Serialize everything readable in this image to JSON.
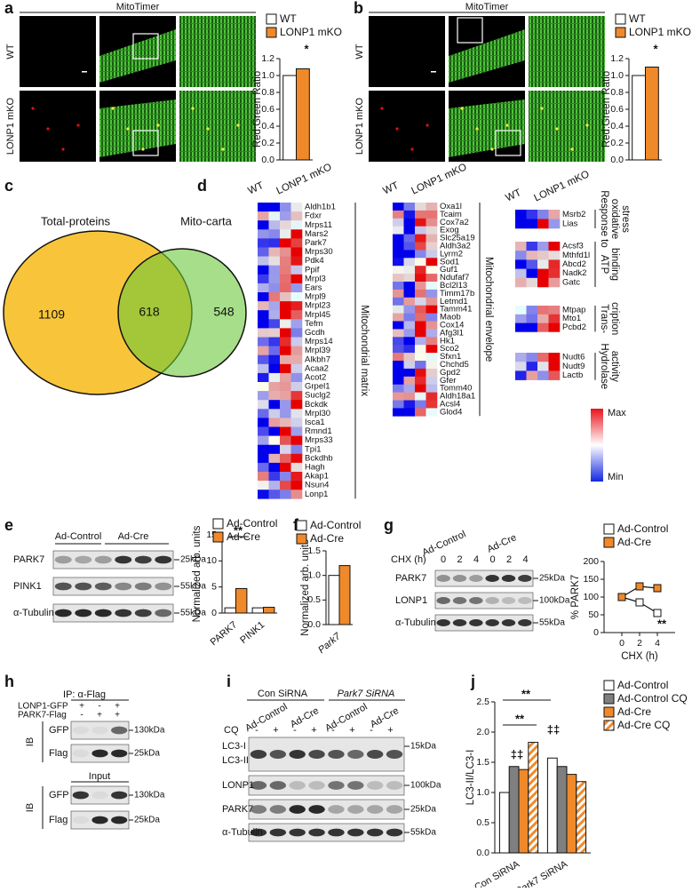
{
  "panels": {
    "a": {
      "letter": "a",
      "title": "MitoTimer",
      "rows": [
        "WT",
        "LONP1 mKO"
      ]
    },
    "b": {
      "letter": "b",
      "title": "MitoTimer",
      "rows": [
        "WT",
        "LONP1 mKO"
      ]
    },
    "c": {
      "letter": "c",
      "sets": [
        "Total-proteins",
        "Mito-carta"
      ],
      "counts": [
        1109,
        618,
        548
      ]
    },
    "d": {
      "letter": "d",
      "columns": [
        "WT",
        "LONP1 mKO"
      ],
      "groups": [
        {
          "label": [
            "Mitochondrial matrix"
          ],
          "genes": [
            "Aldh1b1",
            "Fdxr",
            "Mrps11",
            "Mars2",
            "Park7",
            "Mrps30",
            "Pdk4",
            "Ppif",
            "Mrpl3",
            "Ears",
            "Mrpl9",
            "Mrpl23",
            "Mrpl45",
            "Tefm",
            "Gcdh",
            "Mrps14",
            "Mrpl39",
            "Alkbh7",
            "Acaa2",
            "Acot2",
            "Grpel1",
            "Suclg2",
            "Bckdk",
            "Mrpl30",
            "Isca1",
            "Rmnd1",
            "Mrps33",
            "Tpi1",
            "Bckdhb",
            "Hagh",
            "Akap1",
            "Nsun4",
            "Lonp1"
          ]
        },
        {
          "label": [
            "Mitochondrial envelope"
          ],
          "genes": [
            "Oxa1l",
            "Tcaim",
            "Cox7a2",
            "Exog",
            "Slc25a19",
            "Aldh3a2",
            "Lyrm2",
            "Sod1",
            "Guf1",
            "Ndufaf7",
            "Bcl2l13",
            "Timm17b",
            "Letmd1",
            "Tamm41",
            "Maob",
            "Cox14",
            "Afg3l1",
            "Hk1",
            "Sco2",
            "Sfxn1",
            "Chchd5",
            "Gpd2",
            "Gfer",
            "Tomm40",
            "Aldh18a1",
            "Acsl4",
            "Glod4"
          ]
        },
        {
          "label": [
            "Response to",
            "oxidative",
            "stress"
          ],
          "genes": [
            "Msrb2",
            "Lias"
          ]
        },
        {
          "label": [
            "ATP",
            "binding"
          ],
          "genes": [
            "Acsf3",
            "Mthfd1l",
            "Abcd2",
            "Nadk2",
            "Gatc"
          ]
        },
        {
          "label": [
            "Trans-",
            "cription"
          ],
          "genes": [
            "Mtpap",
            "Mto1",
            "Pcbd2"
          ]
        },
        {
          "label": [
            "Hydrolase",
            "activity"
          ],
          "genes": [
            "Nudt6",
            "Nudt9",
            "Lactb"
          ]
        }
      ],
      "scale": [
        "Max",
        "Min"
      ]
    },
    "e": {
      "letter": "e",
      "lanes": [
        "Ad-Control",
        "Ad-Cre"
      ],
      "rows": [
        {
          "name": "PARK7",
          "size": "25kDa"
        },
        {
          "name": "PINK1",
          "size": "55kDa"
        },
        {
          "name": "α-Tubulin",
          "size": "55kDa"
        }
      ]
    },
    "f": {
      "letter": "f"
    },
    "g": {
      "letter": "g",
      "lanes": [
        "Ad-Control",
        "Ad-Cre"
      ],
      "treatment": "CHX (h)",
      "times": [
        "0",
        "2",
        "4",
        "0",
        "2",
        "4"
      ],
      "rows": [
        {
          "name": "PARK7",
          "size": "25kDa"
        },
        {
          "name": "LONP1",
          "size": "100kDa"
        },
        {
          "name": "α-Tubulin",
          "size": "55kDa"
        }
      ]
    },
    "h": {
      "letter": "h",
      "ip": "IP: α-Flag",
      "conditions": [
        {
          "name": "LONP1-GFP",
          "signs": [
            "+",
            "-",
            "+"
          ]
        },
        {
          "name": "PARK7-Flag",
          "signs": [
            "-",
            "+",
            "+"
          ]
        }
      ],
      "ib": "IB",
      "input": "Input",
      "rows": [
        {
          "name": "GFP",
          "size": "130kDa"
        },
        {
          "name": "Flag",
          "size": "25kDa"
        }
      ]
    },
    "i": {
      "letter": "i",
      "sirna": [
        "Con SiRNA",
        "Park7 SiRNA"
      ],
      "lanes": [
        "Ad-Control",
        "Ad-Cre",
        "Ad-Control",
        "Ad-Cre"
      ],
      "cq": "CQ",
      "cq_signs": [
        "-",
        "+",
        "-",
        "+",
        "-",
        "+",
        "-",
        "+"
      ],
      "rows": [
        {
          "name": "LC3-I",
          "size": "15kDa"
        },
        {
          "name": "LC3-II"
        },
        {
          "name": "LONP1",
          "size": "100kDa"
        },
        {
          "name": "PARK7",
          "size": "25kDa"
        },
        {
          "name": "α-Tubulin",
          "size": "55kDa"
        }
      ]
    },
    "j": {
      "letter": "j"
    }
  },
  "chart_data": [
    {
      "type": "bar",
      "ylabel": "Red:Green Ratio",
      "categories": [
        null
      ],
      "series": [
        {
          "name": "WT",
          "color": "#ffffff",
          "values": [
            1.0
          ]
        },
        {
          "name": "LONP1 mKO",
          "color": "#f0892a",
          "values": [
            1.08
          ]
        }
      ],
      "ylim": [
        0,
        1.2
      ],
      "yticks": [
        {
          "value": 0,
          "label": "0.0"
        },
        0.2,
        0.4,
        0.6,
        0.8,
        {
          "value": 1,
          "label": "1.0"
        },
        1.2
      ],
      "annotations": [
        "*"
      ]
    },
    {
      "type": "bar",
      "ylabel": "Red:Green Ratio",
      "categories": [
        null
      ],
      "series": [
        {
          "name": "WT",
          "color": "#ffffff",
          "values": [
            1.0
          ]
        },
        {
          "name": "LONP1 mKO",
          "color": "#f0892a",
          "values": [
            1.1
          ]
        }
      ],
      "ylim": [
        0,
        1.2
      ],
      "yticks": [
        {
          "value": 0,
          "label": "0.0"
        },
        0.2,
        0.4,
        0.6,
        0.8,
        {
          "value": 1,
          "label": "1.0"
        },
        1.2
      ],
      "annotations": [
        "*"
      ]
    },
    {
      "type": "bar",
      "ylabel": "Normalized arb. units",
      "categories": [
        "PARK7",
        "PINK1"
      ],
      "series": [
        {
          "name": "Ad-Control",
          "color": "#ffffff",
          "values": [
            1.0,
            1.0
          ]
        },
        {
          "name": "Ad-Cre",
          "color": "#f0892a",
          "values": [
            4.7,
            1.1
          ]
        }
      ],
      "ylim": [
        0,
        15
      ],
      "yticks": [
        0,
        5,
        10,
        15
      ],
      "annotations": [
        "**"
      ]
    },
    {
      "type": "bar",
      "ylabel": "Normalized arb. units",
      "categories": [
        "Park7"
      ],
      "series": [
        {
          "name": "Ad-Control",
          "color": "#ffffff",
          "values": [
            1.0
          ]
        },
        {
          "name": "Ad-Cre",
          "color": "#f0892a",
          "values": [
            1.2
          ]
        }
      ],
      "ylim": [
        0,
        1.5
      ],
      "yticks": [
        {
          "value": 0,
          "label": "0.0"
        },
        0.5,
        {
          "value": 1,
          "label": "1.0"
        },
        1.5
      ],
      "annotations": []
    },
    {
      "type": "line",
      "ylabel": "% PARK7",
      "xlabel": "CHX (h)",
      "x": [
        0,
        2,
        4
      ],
      "xlim": [
        -2,
        6
      ],
      "xticks": [
        0,
        2,
        4
      ],
      "series": [
        {
          "name": "Ad-Control",
          "color": "#ffffff",
          "values": [
            100,
            85,
            55
          ]
        },
        {
          "name": "Ad-Cre",
          "color": "#f0892a",
          "values": [
            100,
            130,
            125
          ]
        }
      ],
      "ylim": [
        0,
        200
      ],
      "yticks": [
        0,
        50,
        100,
        150,
        200
      ],
      "annotations": [
        "**"
      ]
    },
    {
      "type": "bar",
      "ylabel": "LC3-II/LC3-I",
      "categories": [
        "Con SiRNA",
        "Park7 SiRNA"
      ],
      "series": [
        {
          "name": "Ad-Control",
          "color": "#ffffff",
          "values": [
            1.0,
            1.57
          ]
        },
        {
          "name": "Ad-Control CQ",
          "color": "#7f7f7f",
          "values": [
            1.43,
            1.43
          ]
        },
        {
          "name": "Ad-Cre",
          "color": "#f0892a",
          "values": [
            1.38,
            1.3
          ]
        },
        {
          "name": "Ad-Cre CQ",
          "color": "#f0892a",
          "hatch": true,
          "values": [
            1.83,
            1.18
          ]
        }
      ],
      "ylim": [
        0,
        2.5
      ],
      "yticks": [
        {
          "value": 0,
          "label": "0.0"
        },
        0.5,
        {
          "value": 1,
          "label": "1.0"
        },
        1.5,
        {
          "value": 2,
          "label": "2.0"
        },
        2.5
      ],
      "annotations": [
        "**",
        "**",
        "‡‡",
        "‡‡"
      ]
    }
  ]
}
